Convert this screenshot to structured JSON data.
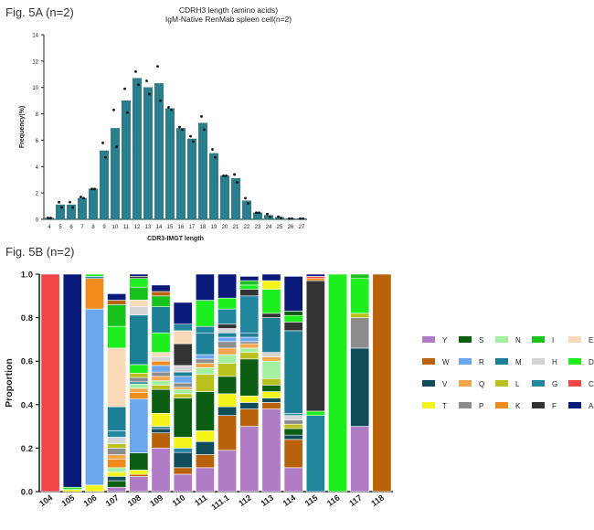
{
  "labels": {
    "fig_a": "Fig. 5A (n=2)",
    "fig_b": "Fig. 5B (n=2)"
  },
  "chart_data": [
    {
      "type": "bar",
      "title": "CDRH3 length (amino acids)",
      "subtitle": "IgM-Native RenMab spleen cell(n=2)",
      "xlabel": "CDR3-IMGT length",
      "ylabel": "Frequency(%)",
      "ylim": [
        0,
        14
      ],
      "yticks": [
        0,
        2,
        4,
        6,
        8,
        10,
        12,
        14
      ],
      "categories": [
        "4",
        "5",
        "6",
        "7",
        "8",
        "9",
        "10",
        "11",
        "12",
        "13",
        "14",
        "15",
        "16",
        "17",
        "18",
        "19",
        "20",
        "21",
        "22",
        "23",
        "24",
        "25",
        "26",
        "27"
      ],
      "values": [
        0.1,
        1.1,
        1.1,
        1.6,
        2.3,
        5.2,
        6.9,
        9.0,
        10.7,
        10.0,
        10.3,
        8.4,
        6.9,
        6.1,
        7.3,
        5.0,
        3.3,
        3.1,
        1.4,
        0.5,
        0.3,
        0.15,
        0.05,
        0.05
      ],
      "replicates": [
        [
          0.1,
          0.1
        ],
        [
          1.3,
          0.9
        ],
        [
          1.3,
          0.9
        ],
        [
          1.7,
          1.6
        ],
        [
          2.3,
          2.3
        ],
        [
          5.8,
          4.7
        ],
        [
          8.3,
          5.5
        ],
        [
          9.9,
          8.1
        ],
        [
          11.2,
          10.2
        ],
        [
          10.5,
          9.5
        ],
        [
          11.6,
          9.0
        ],
        [
          8.5,
          8.3
        ],
        [
          7.0,
          6.8
        ],
        [
          6.3,
          5.9
        ],
        [
          7.8,
          6.8
        ],
        [
          5.3,
          4.7
        ],
        [
          3.3,
          3.3
        ],
        [
          3.4,
          2.8
        ],
        [
          1.6,
          1.2
        ],
        [
          0.5,
          0.5
        ],
        [
          0.4,
          0.2
        ],
        [
          0.2,
          0.1
        ],
        [
          0.05,
          0.05
        ],
        [
          0.05,
          0.05
        ]
      ],
      "bar_color": "#2a7f8f",
      "grid": false
    },
    {
      "type": "bar",
      "stacked": true,
      "ylabel": "Proportion",
      "xlabel": "",
      "ylim": [
        0,
        1.0
      ],
      "yticks": [
        "0.0",
        "0.2",
        "0.4",
        "0.6",
        "0.8",
        "1.0"
      ],
      "categories": [
        "104",
        "105",
        "106",
        "107",
        "108",
        "109",
        "110",
        "111",
        "111.1",
        "112",
        "113",
        "114",
        "115",
        "116",
        "117",
        "118"
      ],
      "legend_position": "right",
      "legend": [
        {
          "aa": "Y",
          "color": "#b07cc6"
        },
        {
          "aa": "S",
          "color": "#0b5e12"
        },
        {
          "aa": "N",
          "color": "#a3f0a3"
        },
        {
          "aa": "I",
          "color": "#16c21b"
        },
        {
          "aa": "E",
          "color": "#f9d9b8"
        },
        {
          "aa": "W",
          "color": "#b8620c"
        },
        {
          "aa": "R",
          "color": "#6aa7ef"
        },
        {
          "aa": "M",
          "color": "#1c7f95"
        },
        {
          "aa": "H",
          "color": "#d4d4d4"
        },
        {
          "aa": "D",
          "color": "#1dee1d"
        },
        {
          "aa": "V",
          "color": "#0f4d5a"
        },
        {
          "aa": "Q",
          "color": "#f4a74a"
        },
        {
          "aa": "L",
          "color": "#b9c21c"
        },
        {
          "aa": "G",
          "color": "#21869e"
        },
        {
          "aa": "C",
          "color": "#f24646"
        },
        {
          "aa": "T",
          "color": "#f4f41a"
        },
        {
          "aa": "P",
          "color": "#8c8c8c"
        },
        {
          "aa": "K",
          "color": "#f08b1c"
        },
        {
          "aa": "F",
          "color": "#333333"
        },
        {
          "aa": "A",
          "color": "#0a1a7a"
        }
      ],
      "series": [
        {
          "category": "104",
          "segments": [
            [
              "C",
              1.0
            ]
          ]
        },
        {
          "category": "105",
          "segments": [
            [
              "T",
              0.01
            ],
            [
              "D",
              0.01
            ],
            [
              "A",
              0.98
            ]
          ]
        },
        {
          "category": "106",
          "segments": [
            [
              "T",
              0.03
            ],
            [
              "R",
              0.81
            ],
            [
              "K",
              0.14
            ],
            [
              "G",
              0.01
            ],
            [
              "D",
              0.01
            ]
          ]
        },
        {
          "category": "107",
          "segments": [
            [
              "Y",
              0.02
            ],
            [
              "S",
              0.03
            ],
            [
              "V",
              0.02
            ],
            [
              "T",
              0.02
            ],
            [
              "N",
              0.02
            ],
            [
              "K",
              0.04
            ],
            [
              "Q",
              0.02
            ],
            [
              "P",
              0.03
            ],
            [
              "L",
              0.02
            ],
            [
              "H",
              0.03
            ],
            [
              "G",
              0.03
            ],
            [
              "M",
              0.11
            ],
            [
              "E",
              0.27
            ],
            [
              "D",
              0.1
            ],
            [
              "I",
              0.1
            ],
            [
              "W",
              0.02
            ],
            [
              "A",
              0.03
            ]
          ]
        },
        {
          "category": "108",
          "segments": [
            [
              "Y",
              0.07
            ],
            [
              "W",
              0.01
            ],
            [
              "T",
              0.02
            ],
            [
              "S",
              0.08
            ],
            [
              "R",
              0.25
            ],
            [
              "K",
              0.03
            ],
            [
              "Q",
              0.02
            ],
            [
              "N",
              0.02
            ],
            [
              "G",
              0.01
            ],
            [
              "P",
              0.02
            ],
            [
              "L",
              0.02
            ],
            [
              "D",
              0.04
            ],
            [
              "M",
              0.23
            ],
            [
              "H",
              0.04
            ],
            [
              "E",
              0.03
            ],
            [
              "I",
              0.06
            ],
            [
              "D",
              0.04
            ],
            [
              "F",
              0.01
            ],
            [
              "A",
              0.01
            ]
          ]
        },
        {
          "category": "109",
          "segments": [
            [
              "Y",
              0.2
            ],
            [
              "W",
              0.07
            ],
            [
              "V",
              0.02
            ],
            [
              "G",
              0.01
            ],
            [
              "T",
              0.06
            ],
            [
              "S",
              0.11
            ],
            [
              "L",
              0.02
            ],
            [
              "N",
              0.02
            ],
            [
              "Q",
              0.02
            ],
            [
              "P",
              0.02
            ],
            [
              "R",
              0.03
            ],
            [
              "K",
              0.02
            ],
            [
              "H",
              0.02
            ],
            [
              "E",
              0.02
            ],
            [
              "D",
              0.09
            ],
            [
              "M",
              0.12
            ],
            [
              "I",
              0.05
            ],
            [
              "W",
              0.02
            ],
            [
              "A",
              0.03
            ]
          ]
        },
        {
          "category": "110",
          "segments": [
            [
              "Y",
              0.08
            ],
            [
              "W",
              0.03
            ],
            [
              "V",
              0.07
            ],
            [
              "G",
              0.02
            ],
            [
              "T",
              0.05
            ],
            [
              "S",
              0.18
            ],
            [
              "L",
              0.02
            ],
            [
              "N",
              0.02
            ],
            [
              "Q",
              0.01
            ],
            [
              "P",
              0.02
            ],
            [
              "R",
              0.03
            ],
            [
              "M",
              0.02
            ],
            [
              "H",
              0.03
            ],
            [
              "F",
              0.1
            ],
            [
              "E",
              0.06
            ],
            [
              "G",
              0.03
            ],
            [
              "A",
              0.1
            ]
          ]
        },
        {
          "category": "111",
          "segments": [
            [
              "Y",
              0.11
            ],
            [
              "W",
              0.06
            ],
            [
              "V",
              0.06
            ],
            [
              "T",
              0.05
            ],
            [
              "S",
              0.18
            ],
            [
              "L",
              0.08
            ],
            [
              "N",
              0.03
            ],
            [
              "Q",
              0.02
            ],
            [
              "P",
              0.02
            ],
            [
              "R",
              0.02
            ],
            [
              "M",
              0.1
            ],
            [
              "G",
              0.03
            ],
            [
              "D",
              0.12
            ],
            [
              "A",
              0.12
            ]
          ]
        },
        {
          "category": "111.1",
          "segments": [
            [
              "Y",
              0.19
            ],
            [
              "W",
              0.16
            ],
            [
              "V",
              0.04
            ],
            [
              "T",
              0.06
            ],
            [
              "S",
              0.08
            ],
            [
              "L",
              0.06
            ],
            [
              "N",
              0.04
            ],
            [
              "Q",
              0.03
            ],
            [
              "P",
              0.03
            ],
            [
              "R",
              0.02
            ],
            [
              "M",
              0.02
            ],
            [
              "H",
              0.02
            ],
            [
              "F",
              0.02
            ],
            [
              "G",
              0.07
            ],
            [
              "D",
              0.05
            ],
            [
              "A",
              0.11
            ]
          ]
        },
        {
          "category": "112",
          "segments": [
            [
              "Y",
              0.3
            ],
            [
              "W",
              0.08
            ],
            [
              "V",
              0.03
            ],
            [
              "T",
              0.03
            ],
            [
              "S",
              0.17
            ],
            [
              "L",
              0.03
            ],
            [
              "N",
              0.02
            ],
            [
              "Q",
              0.02
            ],
            [
              "P",
              0.01
            ],
            [
              "R",
              0.02
            ],
            [
              "M",
              0.02
            ],
            [
              "G",
              0.17
            ],
            [
              "F",
              0.03
            ],
            [
              "D",
              0.02
            ],
            [
              "I",
              0.02
            ],
            [
              "A",
              0.02
            ]
          ]
        },
        {
          "category": "113",
          "segments": [
            [
              "Y",
              0.38
            ],
            [
              "W",
              0.03
            ],
            [
              "V",
              0.02
            ],
            [
              "T",
              0.03
            ],
            [
              "S",
              0.03
            ],
            [
              "L",
              0.03
            ],
            [
              "N",
              0.08
            ],
            [
              "Q",
              0.02
            ],
            [
              "H",
              0.02
            ],
            [
              "M",
              0.16
            ],
            [
              "F",
              0.02
            ],
            [
              "D",
              0.11
            ],
            [
              "T",
              0.04
            ],
            [
              "A",
              0.03
            ]
          ]
        },
        {
          "category": "114",
          "segments": [
            [
              "Y",
              0.11
            ],
            [
              "W",
              0.13
            ],
            [
              "V",
              0.02
            ],
            [
              "S",
              0.03
            ],
            [
              "L",
              0.02
            ],
            [
              "P",
              0.02
            ],
            [
              "H",
              0.02
            ],
            [
              "G",
              0.01
            ],
            [
              "M",
              0.38
            ],
            [
              "F",
              0.04
            ],
            [
              "D",
              0.03
            ],
            [
              "S",
              0.02
            ],
            [
              "A",
              0.16
            ]
          ]
        },
        {
          "category": "115",
          "segments": [
            [
              "G",
              0.35
            ],
            [
              "D",
              0.02
            ],
            [
              "F",
              0.6
            ],
            [
              "K",
              0.01
            ],
            [
              "C",
              0.01
            ],
            [
              "A",
              0.01
            ]
          ]
        },
        {
          "category": "116",
          "segments": [
            [
              "D",
              1.0
            ]
          ]
        },
        {
          "category": "117",
          "segments": [
            [
              "Y",
              0.3
            ],
            [
              "V",
              0.36
            ],
            [
              "P",
              0.14
            ],
            [
              "L",
              0.02
            ],
            [
              "D",
              0.16
            ],
            [
              "I",
              0.02
            ]
          ]
        },
        {
          "category": "118",
          "segments": [
            [
              "W",
              1.0
            ]
          ]
        }
      ]
    }
  ]
}
